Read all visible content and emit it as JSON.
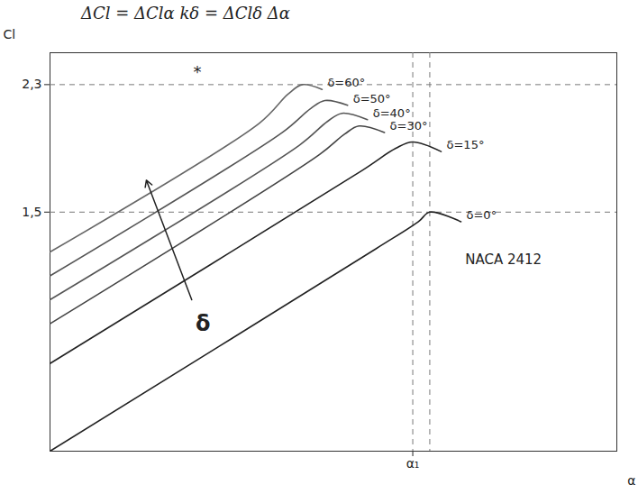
{
  "chart_data": {
    "type": "line",
    "title": "ΔCl = ΔClα kδ = ΔClδ Δα",
    "x_label": "α",
    "y_label": "Cl",
    "xlim": [
      0,
      20
    ],
    "ylim": [
      0,
      2.5
    ],
    "xticks": [
      {
        "value": 12.8,
        "label": "α₁"
      }
    ],
    "yticks": [
      {
        "value": 1.5,
        "label": "1,5"
      },
      {
        "value": 2.3,
        "label": "2,3"
      }
    ],
    "vlines": [
      12.8,
      13.4
    ],
    "grid": false,
    "annotations": [
      "NACA 2412",
      "δ",
      "*"
    ],
    "series": [
      {
        "name": "δ=0°",
        "color": "#222222",
        "x": [
          0,
          11.5,
          13,
          13.4,
          14.5
        ],
        "values": [
          0,
          1.27,
          1.44,
          1.5,
          1.44
        ]
      },
      {
        "name": "δ=15°",
        "color": "#222222",
        "x": [
          0,
          11,
          12.2,
          12.8,
          13.8
        ],
        "values": [
          0.55,
          1.76,
          1.9,
          1.94,
          1.88
        ]
      },
      {
        "name": "δ=30°",
        "color": "#444444",
        "x": [
          0,
          9.5,
          10.4,
          10.9,
          11.8
        ],
        "values": [
          0.8,
          1.86,
          1.99,
          2.04,
          2.0
        ]
      },
      {
        "name": "δ=40°",
        "color": "#555555",
        "x": [
          0,
          8.8,
          9.8,
          10.3,
          11.2
        ],
        "values": [
          0.95,
          1.92,
          2.07,
          2.12,
          2.08
        ]
      },
      {
        "name": "δ=50°",
        "color": "#555555",
        "x": [
          0,
          8.2,
          9.2,
          9.7,
          10.5
        ],
        "values": [
          1.1,
          2.0,
          2.15,
          2.2,
          2.17
        ]
      },
      {
        "name": "δ=60°",
        "color": "#666666",
        "x": [
          0,
          7.4,
          8.4,
          8.9,
          9.6
        ],
        "values": [
          1.25,
          2.06,
          2.24,
          2.3,
          2.27
        ]
      }
    ]
  }
}
